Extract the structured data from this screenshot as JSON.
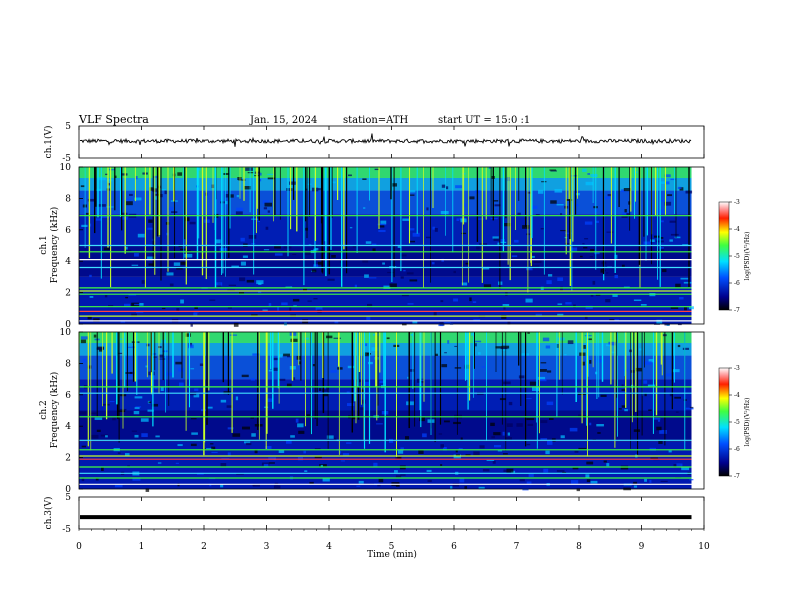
{
  "header": {
    "title": "VLF Spectra",
    "date": "Jan. 15, 2024",
    "station": "station=ATH",
    "start": "start UT =  15:0 :1"
  },
  "colors": {
    "black": "#000000",
    "white": "#ffffff",
    "bg_noise": "#000a8c",
    "line_green": "#40ff40",
    "line_yellow": "#c8ff28"
  },
  "chart_data": [
    {
      "type": "line",
      "panel": "ch1-waveform",
      "ylabel": "ch.1(V)",
      "yticks": [
        "5",
        "-5"
      ],
      "ylim": [
        -5,
        5
      ],
      "xlim": [
        0,
        10
      ],
      "x_range_data": [
        0,
        9.8
      ],
      "trace_level": 0.3,
      "trace_noise_amp": 0.6
    },
    {
      "type": "heatmap",
      "panel": "ch1-spectrogram",
      "ylabel": "ch.1\nFrequency (kHz)",
      "ylabel_line1": "ch.1",
      "ylabel_line2": "Frequency (kHz)",
      "yticks": [
        "0",
        "2",
        "4",
        "6",
        "8",
        "10"
      ],
      "ylim": [
        0,
        10
      ],
      "xlim": [
        0,
        10
      ],
      "x_range_data": [
        0,
        9.8
      ],
      "horizontal_lines_khz": [
        {
          "f": 0.2,
          "color": "#ffffff"
        },
        {
          "f": 0.5,
          "color": "#c8ff28"
        },
        {
          "f": 0.8,
          "color": "#ff4040"
        },
        {
          "f": 1.1,
          "color": "#40ff40"
        },
        {
          "f": 1.9,
          "color": "#40ff40"
        },
        {
          "f": 2.1,
          "color": "#c8ff28"
        },
        {
          "f": 2.3,
          "color": "#40ff40"
        },
        {
          "f": 3.6,
          "color": "#40e0ff"
        },
        {
          "f": 4.1,
          "color": "#ffffff"
        },
        {
          "f": 4.6,
          "color": "#40ff40"
        },
        {
          "f": 5.0,
          "color": "#40e0ff"
        },
        {
          "f": 6.9,
          "color": "#40ff40"
        }
      ],
      "colorbar": {
        "label": "log(PSD)(V²/Hz)",
        "ticks": [
          "-3",
          "-4",
          "-5",
          "-6",
          "-7"
        ],
        "range": [
          -7,
          -3
        ]
      }
    },
    {
      "type": "heatmap",
      "panel": "ch2-spectrogram",
      "ylabel": "ch.2\nFrequency (kHz)",
      "ylabel_line1": "ch.2",
      "ylabel_line2": "Frequency (kHz)",
      "yticks": [
        "0",
        "2",
        "4",
        "6",
        "8",
        "10"
      ],
      "ylim": [
        0,
        10
      ],
      "xlim": [
        0,
        10
      ],
      "x_range_data": [
        0,
        9.8
      ],
      "horizontal_lines_khz": [
        {
          "f": 0.3,
          "color": "#ffffff"
        },
        {
          "f": 0.7,
          "color": "#40ff40"
        },
        {
          "f": 1.0,
          "color": "#40e0ff"
        },
        {
          "f": 1.4,
          "color": "#40ff40"
        },
        {
          "f": 1.9,
          "color": "#ff4040"
        },
        {
          "f": 2.1,
          "color": "#c8ff28"
        },
        {
          "f": 2.5,
          "color": "#40ff40"
        },
        {
          "f": 3.1,
          "color": "#40e0ff"
        },
        {
          "f": 4.6,
          "color": "#40ff40"
        },
        {
          "f": 6.1,
          "color": "#40e0ff"
        },
        {
          "f": 6.5,
          "color": "#40ff40"
        }
      ],
      "colorbar": {
        "label": "log(PSD)(V²/Hz)",
        "ticks": [
          "-3",
          "-4",
          "-5",
          "-6",
          "-7"
        ],
        "range": [
          -7,
          -3
        ]
      }
    },
    {
      "type": "line",
      "panel": "ch3-waveform",
      "ylabel": "ch.3(V)",
      "yticks": [
        "5",
        "-5"
      ],
      "ylim": [
        -5,
        5
      ],
      "xlim": [
        0,
        10
      ],
      "x_range_data": [
        0,
        9.8
      ],
      "trace_level": -1.3,
      "trace_noise_amp": 0.0
    }
  ],
  "xaxis": {
    "xlabel": "Time (min)",
    "ticks": [
      "0",
      "1",
      "2",
      "3",
      "4",
      "5",
      "6",
      "7",
      "8",
      "9",
      "10"
    ],
    "xlim": [
      0,
      10
    ]
  }
}
